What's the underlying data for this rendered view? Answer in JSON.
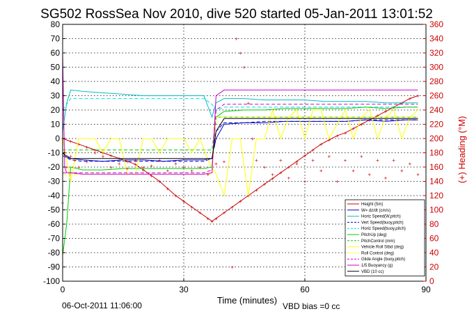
{
  "chart_data": {
    "type": "line",
    "title": "SG502 RossSea Nov 2010, dive 520 started 05-Jan-2011 13:01:52",
    "xlabel": "Time (minutes)",
    "ylabel": "",
    "y2label": "(+) Heading (°M)",
    "footer_left": "06-Oct-2011 11:06:00",
    "footer_right": "VBD bias =0 cc",
    "xlim": [
      0,
      90
    ],
    "ylim": [
      -100,
      80
    ],
    "y2lim": [
      0,
      360
    ],
    "x_ticks": [
      "0",
      "30",
      "60",
      "90"
    ],
    "y_ticks": [
      "80",
      "70",
      "60",
      "50",
      "40",
      "30",
      "20",
      "10",
      "0",
      "-10",
      "-20",
      "-30",
      "-40",
      "-50",
      "-60",
      "-70",
      "-80",
      "-90",
      "-100"
    ],
    "y2_ticks": [
      "360",
      "340",
      "320",
      "300",
      "280",
      "260",
      "240",
      "220",
      "200",
      "180",
      "160",
      "140",
      "120",
      "100",
      "80",
      "60",
      "40",
      "20",
      "0"
    ],
    "grid": true,
    "legend_position": "bottom-right",
    "colors": {
      "left_axis": "#000000",
      "right_axis": "#cc0000"
    },
    "series": [
      {
        "name": "Height (5m)",
        "color": "#cc0000",
        "style": "solid-marker",
        "x": [
          0,
          2,
          4,
          6,
          8,
          10,
          12,
          14,
          16,
          18,
          20,
          22,
          24,
          26,
          28,
          30,
          32,
          34,
          36,
          37,
          38,
          40,
          42,
          44,
          46,
          48,
          50,
          52,
          54,
          56,
          58,
          60,
          62,
          64,
          66,
          68,
          70,
          72,
          74,
          76,
          78,
          80,
          82,
          84,
          86,
          88
        ],
        "y": [
          0,
          -2,
          -4,
          -6,
          -8,
          -10,
          -12,
          -14,
          -16,
          -18,
          -22,
          -26,
          -30,
          -35,
          -40,
          -44,
          -48,
          -52,
          -56,
          -58,
          -56,
          -52,
          -48,
          -44,
          -40,
          -36,
          -32,
          -28,
          -24,
          -20,
          -16,
          -12,
          -8,
          -4,
          -1,
          2,
          4,
          7,
          10,
          13,
          16,
          19,
          22,
          25,
          28,
          30
        ]
      },
      {
        "name": "W= dz/dt (cm/s)",
        "color": "#0000cc",
        "style": "solid",
        "x": [
          0,
          1,
          2,
          5,
          10,
          15,
          20,
          25,
          30,
          35,
          37,
          38,
          40,
          45,
          50,
          55,
          60,
          65,
          70,
          75,
          80,
          85,
          88
        ],
        "y": [
          -10,
          -12,
          -14,
          -15,
          -16,
          -15,
          -15,
          -16,
          -15,
          -15,
          -14,
          0,
          10,
          11,
          11,
          12,
          12,
          12,
          12,
          13,
          12,
          13,
          13
        ]
      },
      {
        "name": "Horiz Speed(W,pitch)",
        "color": "#00bfbf",
        "style": "solid",
        "x": [
          0,
          1,
          2,
          5,
          10,
          15,
          20,
          25,
          30,
          35,
          37,
          38,
          40,
          45,
          50,
          55,
          60,
          65,
          70,
          75,
          80,
          85,
          88
        ],
        "y": [
          5,
          25,
          34,
          33,
          32,
          31,
          30,
          30,
          30,
          30,
          15,
          25,
          28,
          28,
          27,
          27,
          27,
          26,
          26,
          26,
          25,
          25,
          25
        ]
      },
      {
        "name": "Vert Speed(buoy,pitch)",
        "color": "#0000cc",
        "style": "dashed",
        "x": [
          0,
          2,
          5,
          10,
          15,
          20,
          25,
          30,
          35,
          37,
          38,
          40,
          45,
          50,
          55,
          60,
          65,
          70,
          75,
          80,
          85,
          88
        ],
        "y": [
          -12,
          -15,
          -16,
          -16,
          -16,
          -16,
          -16,
          -16,
          -16,
          -14,
          5,
          11,
          11,
          12,
          12,
          12,
          12,
          12,
          13,
          13,
          13,
          13
        ]
      },
      {
        "name": "Horiz Speed(buoy,pitch)",
        "color": "#00e0e0",
        "style": "dashed",
        "x": [
          0,
          2,
          5,
          10,
          15,
          20,
          25,
          30,
          35,
          37,
          38,
          40,
          45,
          50,
          55,
          60,
          65,
          70,
          75,
          80,
          85,
          88
        ],
        "y": [
          20,
          28,
          28,
          28,
          28,
          28,
          28,
          28,
          28,
          24,
          20,
          22,
          22,
          22,
          22,
          22,
          22,
          22,
          22,
          22,
          22,
          22
        ]
      },
      {
        "name": "PitchUp (deg)",
        "color": "#00cc00",
        "style": "solid",
        "x": [
          0,
          1,
          2,
          5,
          10,
          15,
          20,
          25,
          30,
          35,
          37,
          38,
          40,
          45,
          50,
          55,
          60,
          65,
          70,
          75,
          80,
          85,
          88
        ],
        "y": [
          -82,
          -60,
          -20,
          -22,
          -22,
          -21,
          -21,
          -21,
          -21,
          -21,
          -20,
          15,
          19,
          20,
          20,
          21,
          21,
          21,
          21,
          22,
          21,
          22,
          22
        ]
      },
      {
        "name": "PitchControl (mm)",
        "color": "#00cc00",
        "style": "dashed",
        "x": [
          0,
          2,
          5,
          10,
          15,
          20,
          25,
          30,
          35,
          37,
          38,
          40,
          45,
          50,
          55,
          60,
          65,
          70,
          75,
          80,
          85,
          88
        ],
        "y": [
          -8,
          -8,
          -8,
          -8,
          -8,
          -8,
          -8,
          -8,
          -8,
          -8,
          15,
          15,
          15,
          15,
          15,
          15,
          15,
          15,
          15,
          15,
          15,
          15
        ]
      },
      {
        "name": "Vehicle Roll Stbd (deg)",
        "color": "#ffff00",
        "style": "solid",
        "x": [
          0,
          2,
          4,
          6,
          8,
          10,
          12,
          14,
          16,
          18,
          20,
          22,
          24,
          26,
          28,
          30,
          32,
          34,
          36,
          38,
          40,
          42,
          44,
          46,
          48,
          50,
          52,
          54,
          56,
          58,
          60,
          62,
          64,
          66,
          68,
          70,
          72,
          74,
          76,
          78,
          80,
          82,
          84,
          86,
          88
        ],
        "y": [
          0,
          -30,
          0,
          0,
          0,
          -10,
          0,
          0,
          -25,
          -25,
          0,
          0,
          -10,
          0,
          0,
          0,
          -10,
          0,
          -15,
          -25,
          -40,
          0,
          0,
          -40,
          0,
          0,
          20,
          0,
          15,
          20,
          0,
          20,
          20,
          0,
          10,
          20,
          0,
          15,
          20,
          0,
          15,
          20,
          0,
          15,
          20
        ]
      },
      {
        "name": "Roll Control (deg)",
        "color": "#ffff00",
        "style": "dashed",
        "x": [
          0,
          5,
          10,
          15,
          20,
          25,
          30,
          35,
          37,
          38,
          40,
          45,
          50,
          55,
          60,
          65,
          70,
          75,
          80,
          85,
          88
        ],
        "y": [
          -25,
          -25,
          -25,
          -25,
          -25,
          -25,
          -25,
          -25,
          -25,
          15,
          15,
          15,
          15,
          15,
          15,
          15,
          15,
          15,
          15,
          15,
          15
        ]
      },
      {
        "name": "Glide Angle (buoy,pitch)",
        "color": "#cc00cc",
        "style": "dashed",
        "x": [
          0,
          2,
          5,
          10,
          15,
          20,
          25,
          30,
          35,
          37,
          38,
          40,
          45,
          50,
          55,
          60,
          65,
          70,
          75,
          80,
          85,
          88
        ],
        "y": [
          -24,
          -24,
          -24,
          -24,
          -24,
          -24,
          -24,
          -24,
          -24,
          -22,
          20,
          24,
          24,
          24,
          24,
          24,
          24,
          24,
          24,
          24,
          24,
          24
        ]
      },
      {
        "name": "1/5 Buoyancy (g)",
        "color": "#cc00cc",
        "style": "solid",
        "x": [
          0,
          0.5,
          1,
          2,
          5,
          10,
          15,
          20,
          25,
          30,
          35,
          37,
          38,
          40,
          45,
          50,
          55,
          60,
          65,
          70,
          75,
          80,
          85,
          88
        ],
        "y": [
          60,
          -20,
          -24,
          -24,
          -25,
          -25,
          -25,
          -25,
          -25,
          -25,
          -25,
          -24,
          30,
          34,
          34,
          34,
          34,
          34,
          34,
          34,
          34,
          34,
          34,
          34
        ]
      },
      {
        "name": "VBD (10 cc)",
        "color": "#000000",
        "style": "solid",
        "x": [
          0,
          1,
          2,
          5,
          10,
          15,
          20,
          25,
          30,
          35,
          37,
          38,
          40,
          45,
          50,
          55,
          60,
          65,
          70,
          75,
          80,
          85,
          88
        ],
        "y": [
          -10,
          -13,
          -14,
          -14,
          -14,
          -14,
          -14,
          -14,
          -14,
          -14,
          -14,
          5,
          14,
          14,
          14,
          14,
          14,
          14,
          14,
          14,
          14,
          14,
          14
        ]
      },
      {
        "name": "Heading",
        "color": "#cc0000",
        "style": "marker",
        "axis": "right",
        "x": [
          0,
          1,
          2,
          3,
          4,
          6,
          8,
          10,
          12,
          14,
          16,
          18,
          20,
          22,
          24,
          26,
          28,
          30,
          32,
          34,
          36,
          38,
          40,
          42,
          43,
          44,
          45,
          46,
          47,
          48,
          50,
          52,
          54,
          56,
          58,
          60,
          62,
          64,
          66,
          68,
          70,
          72,
          74,
          76,
          78,
          80,
          82,
          84,
          86,
          88
        ],
        "y": [
          110,
          160,
          175,
          170,
          160,
          168,
          180,
          175,
          160,
          165,
          158,
          170,
          160,
          162,
          170,
          155,
          165,
          160,
          155,
          160,
          150,
          165,
          168,
          20,
          340,
          320,
          300,
          250,
          200,
          170,
          160,
          150,
          170,
          145,
          165,
          140,
          170,
          155,
          175,
          140,
          170,
          155,
          175,
          150,
          170,
          145,
          170,
          155,
          165,
          150
        ]
      }
    ]
  }
}
